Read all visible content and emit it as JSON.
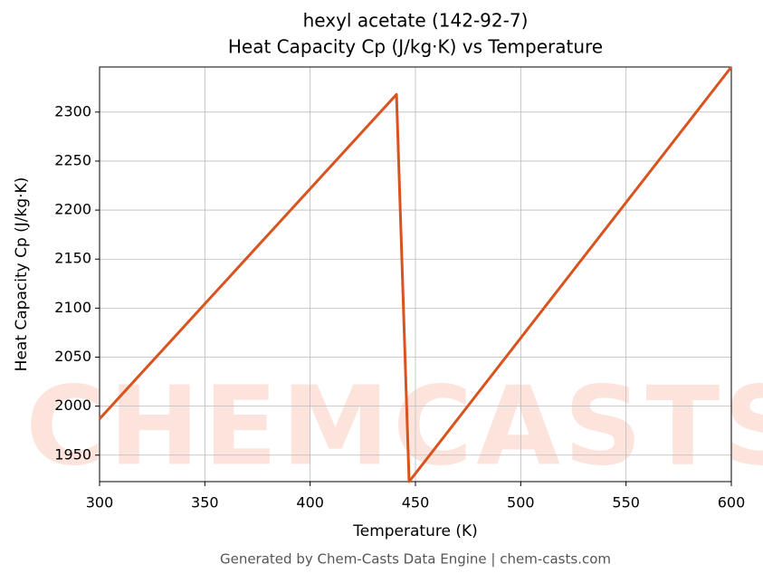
{
  "chart_data": {
    "type": "line",
    "title": "hexyl acetate (142-92-7)",
    "subtitle": "Heat Capacity Cp (J/kg·K) vs Temperature",
    "x_label": "Temperature (K)",
    "y_label": "Heat Capacity Cp (J/kg·K)",
    "footer": "Generated by Chem-Casts Data Engine | chem-casts.com",
    "watermark": "CHEMCASTS",
    "x": [
      300,
      441,
      447,
      600
    ],
    "series": [
      {
        "name": "Heat Capacity Cp",
        "color": "#d9531e",
        "values": [
          1987,
          2318,
          1923,
          2346
        ]
      }
    ],
    "xlim": [
      300,
      600
    ],
    "ylim": [
      1923,
      2346
    ],
    "xticks": [
      300,
      350,
      400,
      450,
      500,
      550,
      600
    ],
    "yticks": [
      1950,
      2000,
      2050,
      2100,
      2150,
      2200,
      2250,
      2300
    ],
    "grid": true
  }
}
